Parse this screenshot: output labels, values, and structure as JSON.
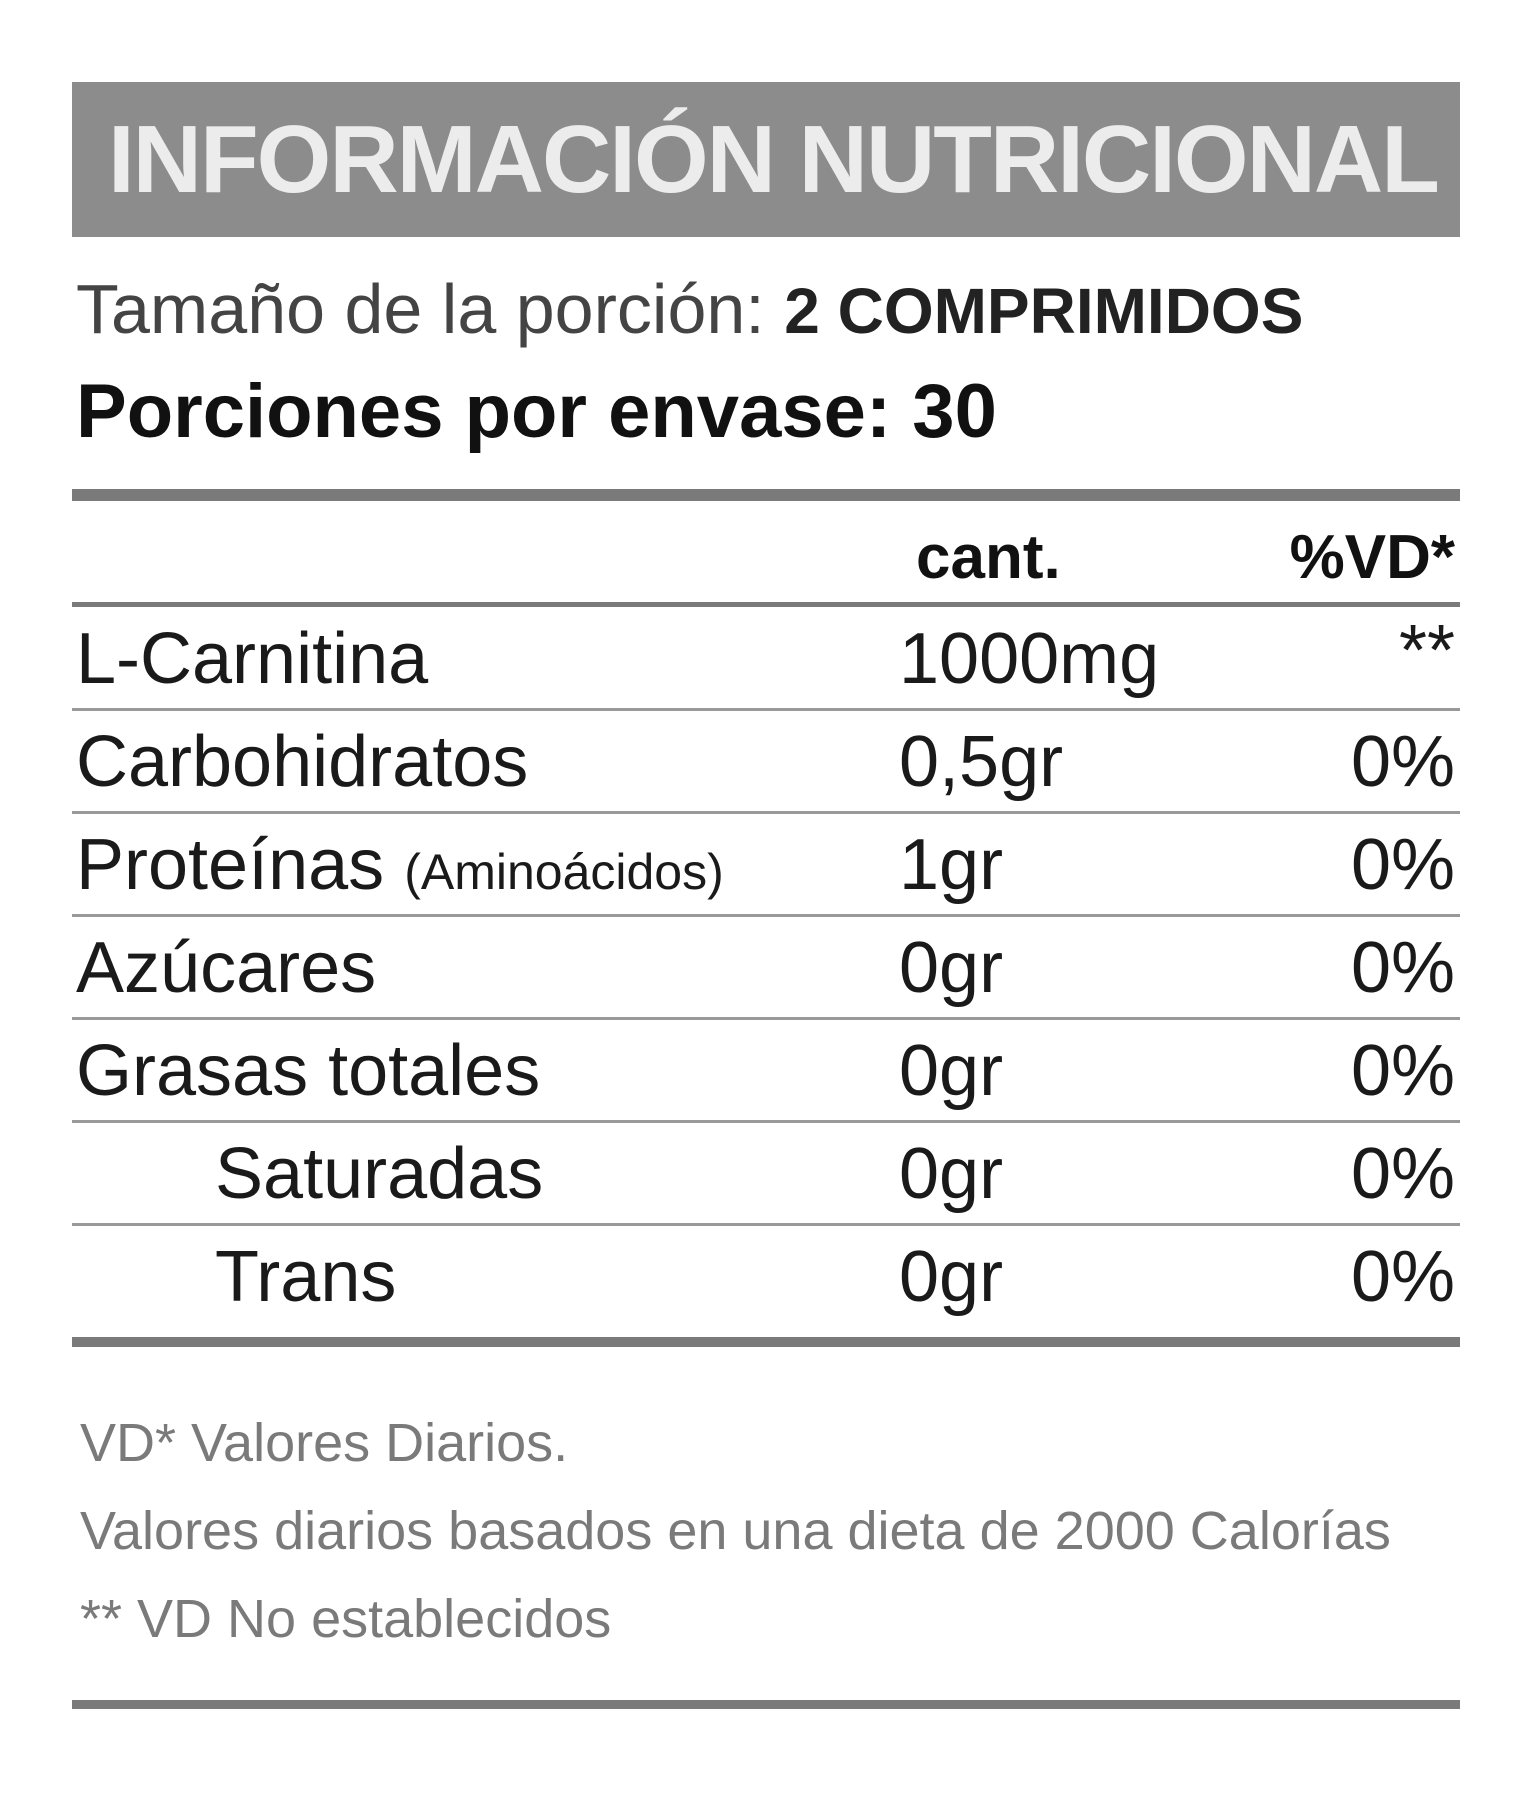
{
  "header": {
    "title": "INFORMACIÓN NUTRICIONAL"
  },
  "serving": {
    "label": "Tamaño de la porción:",
    "value": "2 COMPRIMIDOS"
  },
  "servings_per_container": "Porciones por envase: 30",
  "table": {
    "columns": [
      "cant.",
      "%VD*"
    ],
    "rows": [
      {
        "name": "L-Carnitina",
        "amount": "1000mg",
        "dv": "**",
        "indent": false
      },
      {
        "name": "Carbohidratos",
        "amount": "0,5gr",
        "dv": "0%",
        "indent": false
      },
      {
        "name": "Proteínas",
        "note": "(Aminoácidos)",
        "amount": "1gr",
        "dv": "0%",
        "indent": false
      },
      {
        "name": "Azúcares",
        "amount": "0gr",
        "dv": "0%",
        "indent": false
      },
      {
        "name": "Grasas totales",
        "amount": "0gr",
        "dv": "0%",
        "indent": false
      },
      {
        "name": "Saturadas",
        "amount": "0gr",
        "dv": "0%",
        "indent": true
      },
      {
        "name": "Trans",
        "amount": "0gr",
        "dv": "0%",
        "indent": true
      }
    ]
  },
  "footnotes": [
    "VD* Valores Diarios.",
    "Valores diarios basados en una dieta de 2000 Calorías",
    "** VD No establecidos"
  ]
}
